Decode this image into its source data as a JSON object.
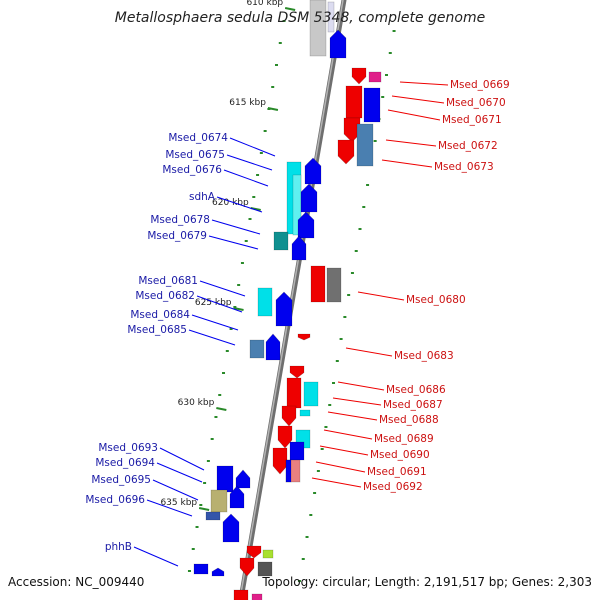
{
  "title": "Metallosphaera sedula DSM 5348, complete genome",
  "footer": {
    "accession": "Accession: NC_009440",
    "topology": "Topology: circular; Length: 2,191,517 bp; Genes: 2,303"
  },
  "colors": {
    "left_gene": "#0000ee",
    "left_label": "#1a1aa6",
    "right_gene": "#ee0000",
    "right_label": "#cc1111",
    "cyan": "#00e0e8",
    "steel": "#4a7fb0",
    "tick": "#2a8a2a",
    "backbone": "#8a8a8a"
  },
  "ticks": [
    {
      "label": "610 kbp"
    },
    {
      "label": "615 kbp"
    },
    {
      "label": "620 kbp"
    },
    {
      "label": "625 kbp"
    },
    {
      "label": "630 kbp"
    },
    {
      "label": "635 kbp"
    }
  ],
  "left_labels": [
    {
      "text": "Msed_0674"
    },
    {
      "text": "Msed_0675"
    },
    {
      "text": "Msed_0676"
    },
    {
      "text": "sdhA"
    },
    {
      "text": "Msed_0678"
    },
    {
      "text": "Msed_0679"
    },
    {
      "text": "Msed_0681"
    },
    {
      "text": "Msed_0682"
    },
    {
      "text": "Msed_0684"
    },
    {
      "text": "Msed_0685"
    },
    {
      "text": "Msed_0693"
    },
    {
      "text": "Msed_0694"
    },
    {
      "text": "Msed_0695"
    },
    {
      "text": "Msed_0696"
    },
    {
      "text": "phhB"
    }
  ],
  "right_labels": [
    {
      "text": "Msed_0669"
    },
    {
      "text": "Msed_0670"
    },
    {
      "text": "Msed_0671"
    },
    {
      "text": "Msed_0672"
    },
    {
      "text": "Msed_0673"
    },
    {
      "text": "Msed_0680"
    },
    {
      "text": "Msed_0683"
    },
    {
      "text": "Msed_0686"
    },
    {
      "text": "Msed_0687"
    },
    {
      "text": "Msed_0688"
    },
    {
      "text": "Msed_0689"
    },
    {
      "text": "Msed_0690"
    },
    {
      "text": "Msed_0691"
    },
    {
      "text": "Msed_0692"
    }
  ]
}
